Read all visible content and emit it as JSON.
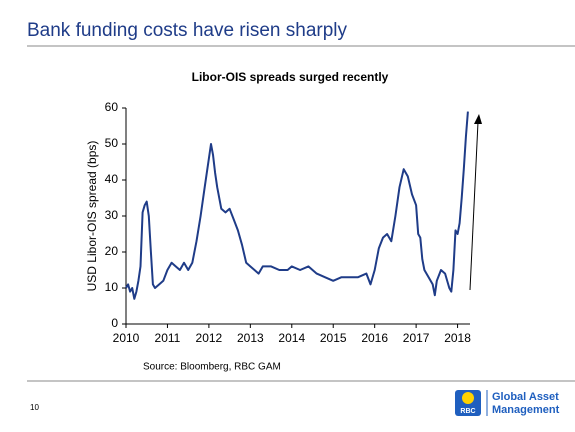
{
  "slide": {
    "title": "Bank funding costs have risen sharply",
    "page_number": "10",
    "logo_text": "RBC",
    "brand_line1": "Global Asset",
    "brand_line2": "Management"
  },
  "chart_data": {
    "type": "line",
    "title": "Libor-OIS spreads surged recently",
    "y_label": "USD Libor-OIS spread (bps)",
    "source": "Source: Bloomberg, RBC GAM",
    "xlim": [
      2010,
      2018.3
    ],
    "xticks": [
      2010,
      2011,
      2012,
      2013,
      2014,
      2015,
      2016,
      2017,
      2018
    ],
    "ylim": [
      0,
      60
    ],
    "yticks": [
      0,
      10,
      20,
      30,
      40,
      50,
      60
    ],
    "series": [
      {
        "name": "USD Libor-OIS spread",
        "color": "#1f3c88",
        "x": [
          2010.0,
          2010.05,
          2010.1,
          2010.15,
          2010.2,
          2010.25,
          2010.3,
          2010.35,
          2010.4,
          2010.45,
          2010.5,
          2010.55,
          2010.6,
          2010.65,
          2010.7,
          2010.8,
          2010.9,
          2011.0,
          2011.1,
          2011.2,
          2011.3,
          2011.4,
          2011.5,
          2011.6,
          2011.7,
          2011.8,
          2011.9,
          2012.0,
          2012.05,
          2012.1,
          2012.15,
          2012.2,
          2012.3,
          2012.4,
          2012.5,
          2012.6,
          2012.7,
          2012.8,
          2012.9,
          2013.0,
          2013.1,
          2013.2,
          2013.3,
          2013.5,
          2013.7,
          2013.9,
          2014.0,
          2014.2,
          2014.4,
          2014.6,
          2014.8,
          2015.0,
          2015.2,
          2015.4,
          2015.6,
          2015.8,
          2015.9,
          2016.0,
          2016.1,
          2016.2,
          2016.3,
          2016.4,
          2016.5,
          2016.6,
          2016.7,
          2016.8,
          2016.9,
          2017.0,
          2017.05,
          2017.1,
          2017.15,
          2017.2,
          2017.3,
          2017.4,
          2017.45,
          2017.5,
          2017.6,
          2017.7,
          2017.8,
          2017.85,
          2017.9,
          2017.95,
          2018.0,
          2018.05,
          2018.1,
          2018.15,
          2018.2,
          2018.25
        ],
        "values": [
          10,
          11,
          9,
          10,
          7,
          9,
          12,
          16,
          31,
          33,
          34,
          30,
          20,
          11,
          10,
          11,
          12,
          15,
          17,
          16,
          15,
          17,
          15,
          17,
          23,
          30,
          38,
          46,
          50,
          47,
          42,
          38,
          32,
          31,
          32,
          29,
          26,
          22,
          17,
          16,
          15,
          14,
          16,
          16,
          15,
          15,
          16,
          15,
          16,
          14,
          13,
          12,
          13,
          13,
          13,
          14,
          11,
          15,
          21,
          24,
          25,
          23,
          30,
          38,
          43,
          41,
          36,
          33,
          25,
          24,
          18,
          15,
          13,
          11,
          8,
          12,
          15,
          14,
          10,
          9,
          15,
          26,
          25,
          28,
          35,
          43,
          52,
          59
        ]
      }
    ]
  }
}
